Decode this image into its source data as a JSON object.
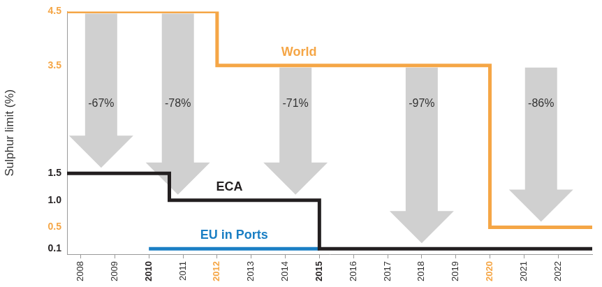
{
  "chart_data": {
    "type": "step",
    "y_label": "Sulphur limit (%)",
    "xlim": [
      2007.6,
      2023
    ],
    "xticks": [
      2008,
      2009,
      2010,
      2011,
      2012,
      2013,
      2014,
      2015,
      2016,
      2017,
      2018,
      2019,
      2020,
      2021,
      2022
    ],
    "ylim": [
      0,
      4.5
    ],
    "yticks": [
      0.1,
      0.5,
      {
        "value": 1,
        "label": "1.0"
      },
      1.5,
      3.5,
      4.5
    ],
    "grid": false,
    "series": [
      {
        "name": "World",
        "color": "#f5a646",
        "x": [
          2007.6,
          2012,
          2020,
          2023
        ],
        "values": [
          4.5,
          3.5,
          0.5,
          0.5
        ]
      },
      {
        "name": "ECA",
        "color": "#231f20",
        "x": [
          2007.6,
          2010.6,
          2015,
          2023
        ],
        "values": [
          1.5,
          1,
          0.1,
          0.1
        ]
      },
      {
        "name": "EU in Ports",
        "color": "#1b7fc4",
        "x": [
          2010,
          2015
        ],
        "values": [
          0.1,
          0.1
        ]
      }
    ],
    "annotations": [
      {
        "text": "-67%",
        "x": 2008.6,
        "y_from": 4.5,
        "y_to": 1.5
      },
      {
        "text": "-78%",
        "x": 2010.85,
        "y_from": 4.5,
        "y_to": 1
      },
      {
        "text": "-71%",
        "x": 2014.3,
        "y_from": 3.5,
        "y_to": 1
      },
      {
        "text": "-97%",
        "x": 2018,
        "y_from": 3.5,
        "y_to": 0.1
      },
      {
        "text": "-86%",
        "x": 2021.5,
        "y_from": 3.5,
        "y_to": 0.5
      }
    ]
  }
}
